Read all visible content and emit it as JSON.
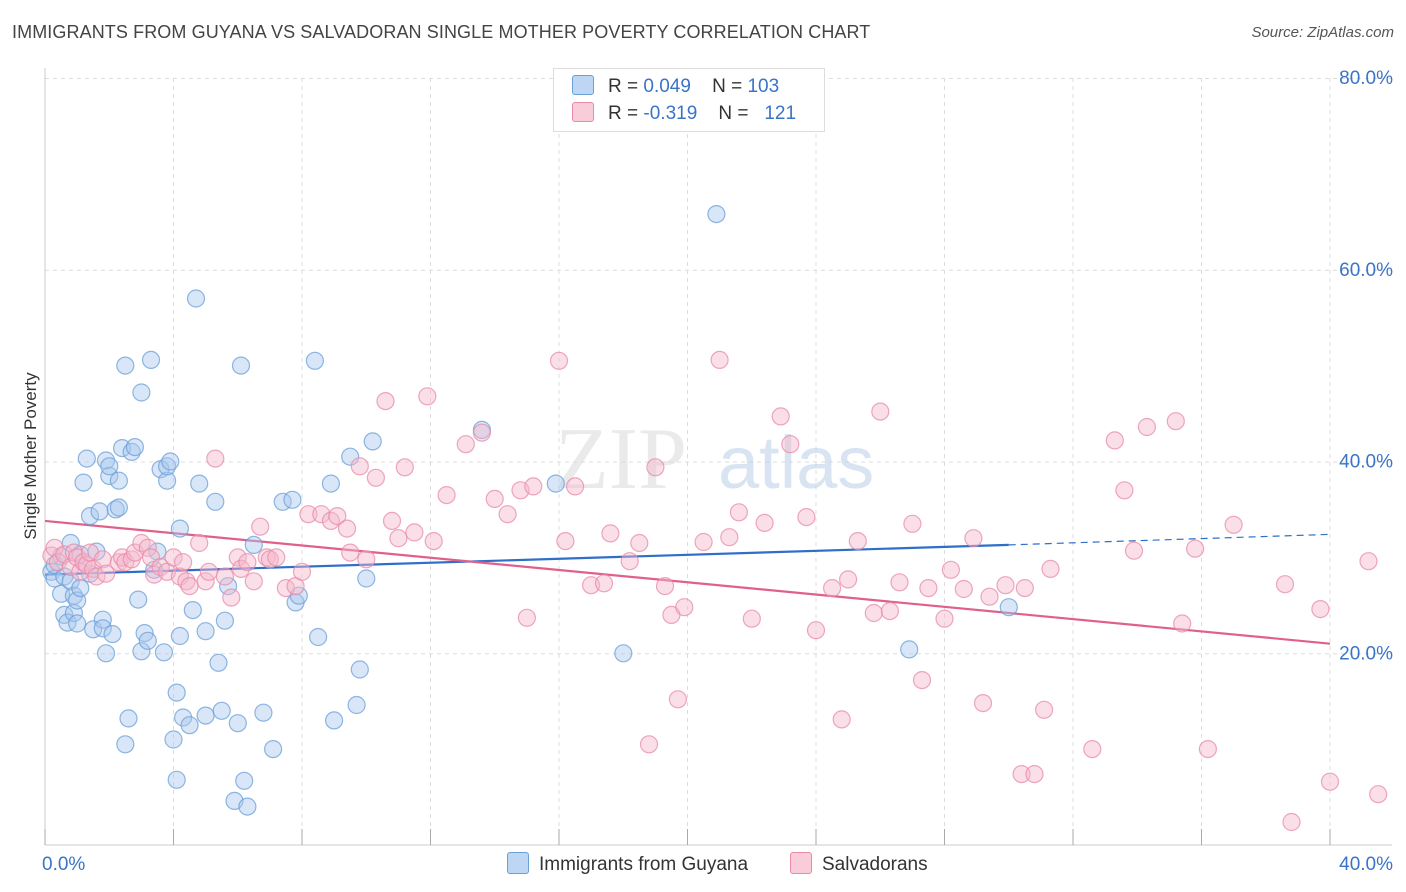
{
  "title": "IMMIGRANTS FROM GUYANA VS SALVADORAN SINGLE MOTHER POVERTY CORRELATION CHART",
  "source": "Source: ZipAtlas.com",
  "watermark": {
    "zip": "ZIP",
    "atlas": "atlas"
  },
  "legend": {
    "r_label": "R =",
    "n_label": "N =",
    "rows": [
      {
        "r": "0.049",
        "n": "103"
      },
      {
        "r": "-0.319",
        "n": "121"
      }
    ]
  },
  "colors": {
    "blue_fill": "#a9c8ee",
    "blue_stroke": "#6a9fd8",
    "blue_line": "#2f6fc9",
    "pink_fill": "#f5b8cb",
    "pink_stroke": "#e88aa8",
    "pink_line": "#e0608a",
    "tick_label": "#3a74c8",
    "grid": "#dcdcdc"
  },
  "chart_data": {
    "type": "scatter",
    "xlabel": "",
    "ylabel": "Single Mother Poverty",
    "xlim": [
      0,
      40
    ],
    "ylim": [
      0,
      80
    ],
    "x_tick_labels": [
      {
        "v": 0,
        "label": "0.0%"
      },
      {
        "v": 40,
        "label": "40.0%"
      }
    ],
    "y_tick_labels": [
      {
        "v": 20,
        "label": "20.0%"
      },
      {
        "v": 40,
        "label": "40.0%"
      },
      {
        "v": 60,
        "label": "60.0%"
      },
      {
        "v": 80,
        "label": "80.0%"
      }
    ],
    "legend_position": "top-center",
    "grid": true,
    "series": [
      {
        "name": "Immigrants from Guyana",
        "color": "blue",
        "trend": {
          "x1": 0,
          "y1": 28.2,
          "x2": 30,
          "y2": 31.3,
          "dash_to_x": 40,
          "dash_to_y": 32.4
        },
        "points": [
          [
            0.2,
            28.5
          ],
          [
            0.3,
            27.8
          ],
          [
            0.3,
            29.2
          ],
          [
            0.5,
            30.1
          ],
          [
            0.5,
            26.2
          ],
          [
            0.6,
            24.0
          ],
          [
            0.6,
            28.0
          ],
          [
            0.7,
            23.2
          ],
          [
            0.8,
            31.5
          ],
          [
            0.8,
            27.5
          ],
          [
            0.9,
            26.0
          ],
          [
            0.9,
            24.2
          ],
          [
            1.0,
            25.5
          ],
          [
            1.0,
            23.1
          ],
          [
            1.1,
            30.3
          ],
          [
            1.1,
            26.8
          ],
          [
            1.2,
            37.8
          ],
          [
            1.3,
            40.3
          ],
          [
            1.4,
            34.3
          ],
          [
            1.4,
            28.3
          ],
          [
            1.5,
            22.5
          ],
          [
            1.6,
            30.6
          ],
          [
            1.7,
            34.8
          ],
          [
            1.8,
            23.5
          ],
          [
            1.8,
            22.6
          ],
          [
            1.9,
            20.0
          ],
          [
            1.9,
            40.1
          ],
          [
            2.0,
            38.5
          ],
          [
            2.0,
            39.5
          ],
          [
            2.1,
            22.0
          ],
          [
            2.2,
            35.0
          ],
          [
            2.3,
            38.0
          ],
          [
            2.3,
            35.2
          ],
          [
            2.4,
            41.4
          ],
          [
            2.5,
            10.5
          ],
          [
            2.5,
            50.0
          ],
          [
            2.6,
            13.2
          ],
          [
            2.7,
            41.0
          ],
          [
            2.8,
            41.5
          ],
          [
            2.9,
            25.6
          ],
          [
            3.0,
            20.2
          ],
          [
            3.0,
            47.2
          ],
          [
            3.1,
            22.1
          ],
          [
            3.2,
            21.3
          ],
          [
            3.3,
            50.6
          ],
          [
            3.4,
            28.7
          ],
          [
            3.5,
            30.6
          ],
          [
            3.6,
            39.2
          ],
          [
            3.7,
            20.1
          ],
          [
            3.8,
            38.0
          ],
          [
            3.8,
            39.5
          ],
          [
            3.9,
            40.0
          ],
          [
            4.0,
            11.0
          ],
          [
            4.1,
            15.9
          ],
          [
            4.1,
            6.8
          ],
          [
            4.2,
            33.0
          ],
          [
            4.2,
            21.8
          ],
          [
            4.3,
            13.3
          ],
          [
            4.5,
            12.5
          ],
          [
            4.6,
            24.5
          ],
          [
            4.7,
            57.0
          ],
          [
            4.8,
            37.7
          ],
          [
            5.0,
            22.3
          ],
          [
            5.0,
            13.5
          ],
          [
            5.3,
            35.8
          ],
          [
            5.4,
            19.0
          ],
          [
            5.5,
            14.0
          ],
          [
            5.6,
            23.4
          ],
          [
            5.7,
            27.0
          ],
          [
            5.9,
            4.6
          ],
          [
            6.0,
            12.7
          ],
          [
            6.1,
            50.0
          ],
          [
            6.2,
            6.7
          ],
          [
            6.3,
            4.0
          ],
          [
            6.5,
            31.3
          ],
          [
            6.8,
            13.8
          ],
          [
            7.1,
            10.0
          ],
          [
            7.4,
            35.8
          ],
          [
            7.7,
            36.0
          ],
          [
            7.8,
            25.3
          ],
          [
            7.9,
            26.0
          ],
          [
            8.4,
            50.5
          ],
          [
            8.5,
            21.7
          ],
          [
            8.9,
            37.7
          ],
          [
            9.0,
            13.0
          ],
          [
            9.5,
            40.5
          ],
          [
            9.7,
            14.6
          ],
          [
            9.8,
            18.3
          ],
          [
            10.0,
            27.8
          ],
          [
            10.2,
            42.1
          ],
          [
            13.6,
            43.3
          ],
          [
            15.9,
            37.7
          ],
          [
            18.0,
            20.0
          ],
          [
            20.9,
            65.8
          ],
          [
            26.9,
            20.4
          ],
          [
            30.0,
            24.8
          ]
        ]
      },
      {
        "name": "Salvadorans",
        "color": "pink",
        "trend": {
          "x1": 0,
          "y1": 33.8,
          "x2": 40,
          "y2": 21.0
        },
        "points": [
          [
            0.2,
            30.2
          ],
          [
            0.3,
            31.0
          ],
          [
            0.4,
            29.5
          ],
          [
            0.6,
            30.3
          ],
          [
            0.8,
            29.0
          ],
          [
            0.9,
            30.5
          ],
          [
            1.0,
            30.0
          ],
          [
            1.1,
            28.5
          ],
          [
            1.2,
            29.5
          ],
          [
            1.3,
            29.2
          ],
          [
            1.4,
            30.5
          ],
          [
            1.5,
            28.8
          ],
          [
            1.6,
            28.0
          ],
          [
            1.8,
            29.8
          ],
          [
            1.9,
            28.3
          ],
          [
            2.3,
            29.5
          ],
          [
            2.4,
            30.0
          ],
          [
            2.5,
            29.5
          ],
          [
            2.7,
            29.8
          ],
          [
            2.8,
            30.5
          ],
          [
            3.0,
            31.5
          ],
          [
            3.2,
            31.0
          ],
          [
            3.3,
            30.0
          ],
          [
            3.4,
            28.2
          ],
          [
            3.6,
            29.0
          ],
          [
            3.8,
            28.5
          ],
          [
            4.0,
            30.0
          ],
          [
            4.2,
            28.0
          ],
          [
            4.3,
            29.5
          ],
          [
            4.4,
            27.5
          ],
          [
            4.5,
            27.0
          ],
          [
            4.8,
            31.5
          ],
          [
            5.0,
            27.5
          ],
          [
            5.1,
            28.5
          ],
          [
            5.3,
            40.3
          ],
          [
            5.6,
            28.0
          ],
          [
            5.8,
            25.8
          ],
          [
            6.0,
            30.0
          ],
          [
            6.1,
            28.8
          ],
          [
            6.3,
            29.5
          ],
          [
            6.5,
            27.5
          ],
          [
            6.7,
            33.2
          ],
          [
            6.9,
            30.0
          ],
          [
            7.0,
            29.8
          ],
          [
            7.2,
            30.0
          ],
          [
            7.5,
            26.8
          ],
          [
            7.8,
            27.0
          ],
          [
            8.0,
            28.5
          ],
          [
            8.2,
            34.5
          ],
          [
            8.6,
            34.5
          ],
          [
            8.9,
            33.8
          ],
          [
            9.1,
            34.3
          ],
          [
            9.4,
            33.0
          ],
          [
            9.5,
            30.5
          ],
          [
            9.8,
            39.5
          ],
          [
            10.0,
            29.8
          ],
          [
            10.3,
            38.3
          ],
          [
            10.6,
            46.3
          ],
          [
            10.8,
            33.8
          ],
          [
            11.0,
            32.0
          ],
          [
            11.2,
            39.4
          ],
          [
            11.5,
            32.6
          ],
          [
            11.9,
            46.8
          ],
          [
            12.1,
            31.7
          ],
          [
            12.5,
            36.5
          ],
          [
            13.1,
            41.8
          ],
          [
            13.6,
            43.0
          ],
          [
            14.0,
            36.1
          ],
          [
            14.4,
            34.5
          ],
          [
            14.8,
            37.0
          ],
          [
            15.0,
            23.7
          ],
          [
            15.2,
            37.4
          ],
          [
            16.0,
            50.5
          ],
          [
            16.2,
            31.7
          ],
          [
            16.5,
            37.4
          ],
          [
            17.0,
            27.1
          ],
          [
            17.4,
            27.3
          ],
          [
            17.6,
            32.5
          ],
          [
            18.2,
            29.6
          ],
          [
            18.5,
            31.5
          ],
          [
            18.8,
            10.5
          ],
          [
            19.0,
            39.4
          ],
          [
            19.3,
            27.0
          ],
          [
            19.5,
            24.0
          ],
          [
            19.7,
            15.2
          ],
          [
            19.9,
            24.8
          ],
          [
            20.5,
            31.6
          ],
          [
            21.0,
            50.6
          ],
          [
            21.3,
            32.1
          ],
          [
            21.6,
            34.7
          ],
          [
            22.0,
            23.6
          ],
          [
            22.4,
            33.6
          ],
          [
            22.9,
            44.7
          ],
          [
            23.2,
            41.8
          ],
          [
            23.7,
            34.2
          ],
          [
            24.0,
            22.4
          ],
          [
            24.5,
            26.8
          ],
          [
            24.8,
            13.1
          ],
          [
            25.0,
            27.7
          ],
          [
            25.3,
            31.7
          ],
          [
            25.8,
            24.2
          ],
          [
            26.0,
            45.2
          ],
          [
            26.3,
            24.4
          ],
          [
            26.6,
            27.4
          ],
          [
            27.0,
            33.5
          ],
          [
            27.3,
            17.2
          ],
          [
            27.5,
            26.8
          ],
          [
            28.0,
            23.6
          ],
          [
            28.2,
            28.7
          ],
          [
            28.6,
            26.7
          ],
          [
            28.9,
            32.0
          ],
          [
            29.2,
            14.8
          ],
          [
            29.4,
            25.9
          ],
          [
            29.9,
            27.1
          ],
          [
            30.4,
            7.4
          ],
          [
            30.5,
            26.8
          ],
          [
            30.8,
            7.4
          ],
          [
            31.1,
            14.1
          ],
          [
            31.3,
            28.8
          ],
          [
            32.6,
            10.0
          ],
          [
            33.3,
            42.2
          ],
          [
            33.6,
            37.0
          ],
          [
            33.9,
            30.7
          ],
          [
            34.3,
            43.6
          ],
          [
            35.2,
            44.2
          ],
          [
            35.4,
            23.1
          ],
          [
            35.8,
            30.9
          ],
          [
            36.2,
            10.0
          ],
          [
            37.0,
            33.4
          ],
          [
            38.6,
            27.2
          ],
          [
            38.8,
            2.4
          ],
          [
            39.7,
            24.6
          ],
          [
            40.0,
            6.6
          ],
          [
            41.2,
            29.6
          ],
          [
            41.5,
            5.3
          ]
        ]
      }
    ]
  }
}
